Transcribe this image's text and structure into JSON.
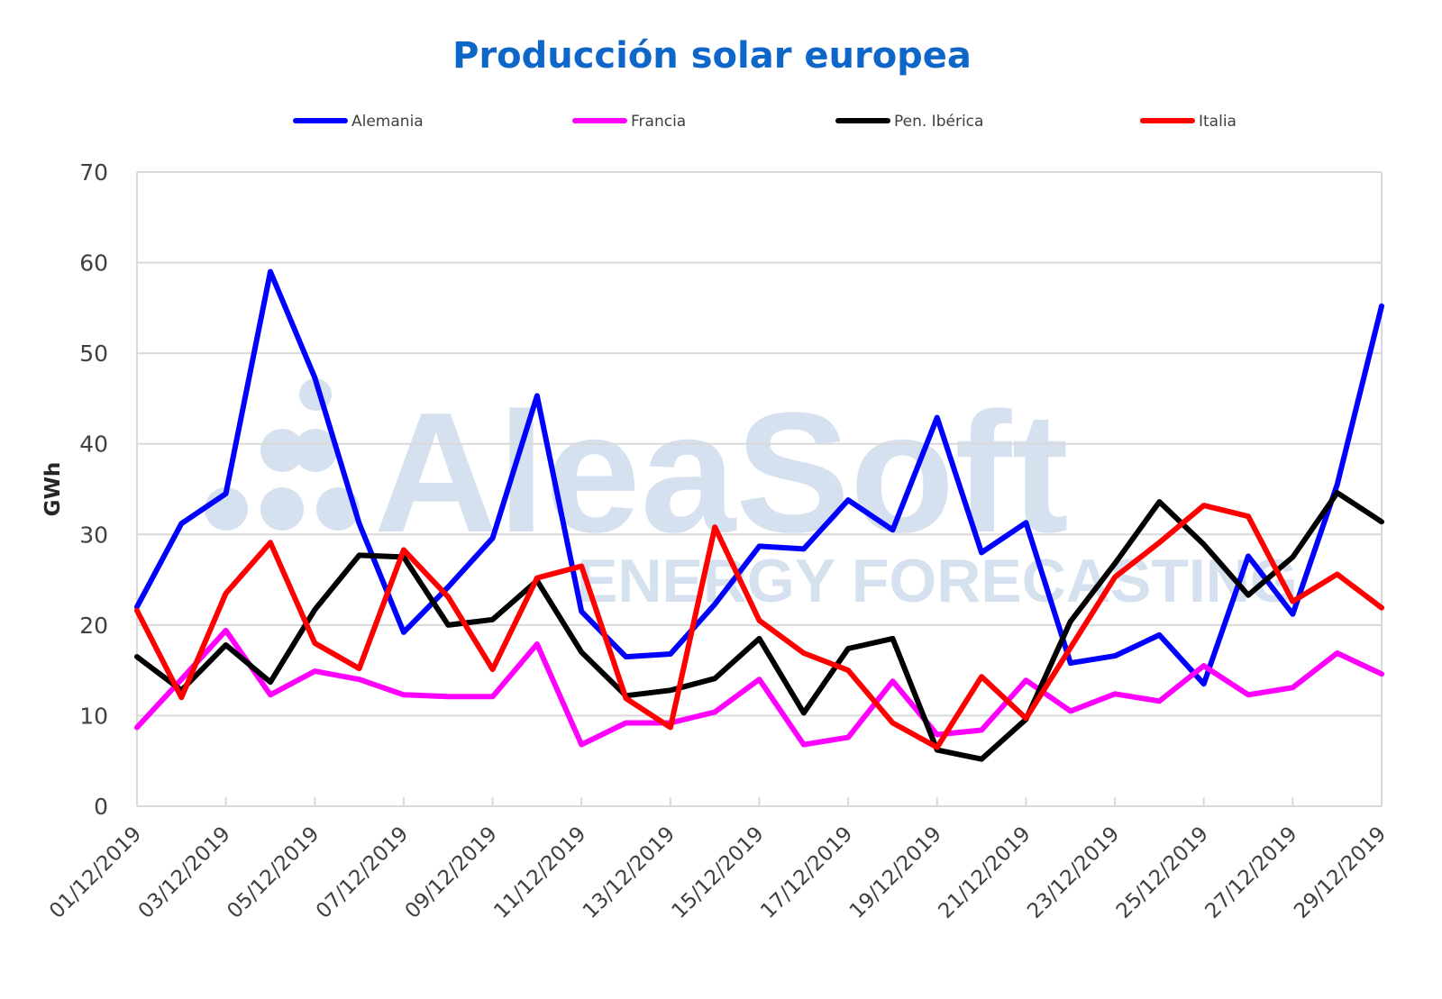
{
  "chart_data": {
    "type": "line",
    "title": "Producción solar europea",
    "xlabel": "",
    "ylabel": "GWh",
    "ylim": [
      0,
      70
    ],
    "yticks": [
      "0",
      "10",
      "20",
      "30",
      "40",
      "50",
      "60",
      "70"
    ],
    "grid": true,
    "legend_position": "top",
    "watermark": {
      "brand": "AleaSoft",
      "tagline": "ENERGY FORECASTING",
      "color": "#d6e1f0"
    },
    "x": [
      "01/12/2019",
      "02/12/2019",
      "03/12/2019",
      "04/12/2019",
      "05/12/2019",
      "06/12/2019",
      "07/12/2019",
      "08/12/2019",
      "09/12/2019",
      "10/12/2019",
      "11/12/2019",
      "12/12/2019",
      "13/12/2019",
      "14/12/2019",
      "15/12/2019",
      "16/12/2019",
      "17/12/2019",
      "18/12/2019",
      "19/12/2019",
      "20/12/2019",
      "21/12/2019",
      "22/12/2019",
      "23/12/2019",
      "24/12/2019",
      "25/12/2019",
      "26/12/2019",
      "27/12/2019",
      "28/12/2019",
      "29/12/2019"
    ],
    "xtick_labels": [
      "01/12/2019",
      "03/12/2019",
      "05/12/2019",
      "07/12/2019",
      "09/12/2019",
      "11/12/2019",
      "13/12/2019",
      "15/12/2019",
      "17/12/2019",
      "19/12/2019",
      "21/12/2019",
      "23/12/2019",
      "25/12/2019",
      "27/12/2019",
      "29/12/2019"
    ],
    "series": [
      {
        "name": "Alemania",
        "color": "#0000ff",
        "values": [
          22,
          31.2,
          34.5,
          59,
          47.3,
          31.2,
          19.2,
          24.2,
          29.6,
          45.3,
          21.5,
          16.5,
          16.8,
          22.3,
          28.7,
          28.4,
          33.8,
          30.5,
          42.9,
          28,
          31.3,
          15.8,
          16.6,
          18.9,
          13.5,
          27.6,
          21.2,
          35.5,
          55.2
        ]
      },
      {
        "name": "Francia",
        "color": "#ff00ff",
        "values": [
          8.7,
          14,
          19.4,
          12.3,
          14.9,
          14,
          12.3,
          12.1,
          12.1,
          17.9,
          6.8,
          9.2,
          9.2,
          10.4,
          14,
          6.8,
          7.6,
          13.8,
          7.9,
          8.4,
          13.9,
          10.5,
          12.4,
          11.6,
          15.5,
          12.3,
          13.1,
          16.9,
          14.6
        ]
      },
      {
        "name": "Pen. Ibérica",
        "color": "#000000",
        "values": [
          16.5,
          12.8,
          17.8,
          13.7,
          21.7,
          27.7,
          27.5,
          20,
          20.6,
          24.9,
          17,
          12.2,
          12.8,
          14.1,
          18.5,
          10.3,
          17.4,
          18.5,
          6.2,
          5.2,
          9.6,
          20.4,
          26.8,
          33.6,
          28.9,
          23.3,
          27.5,
          34.6,
          31.4
        ]
      },
      {
        "name": "Italia",
        "color": "#ff0000",
        "values": [
          21.6,
          12,
          23.5,
          29.1,
          18,
          15.2,
          28.3,
          23.1,
          15.1,
          25.2,
          26.5,
          11.9,
          8.7,
          30.8,
          20.5,
          16.9,
          15,
          9.2,
          6.5,
          14.3,
          9.7,
          17.5,
          25.3,
          29.1,
          33.2,
          32,
          22.6,
          25.6,
          21.9
        ]
      }
    ]
  }
}
